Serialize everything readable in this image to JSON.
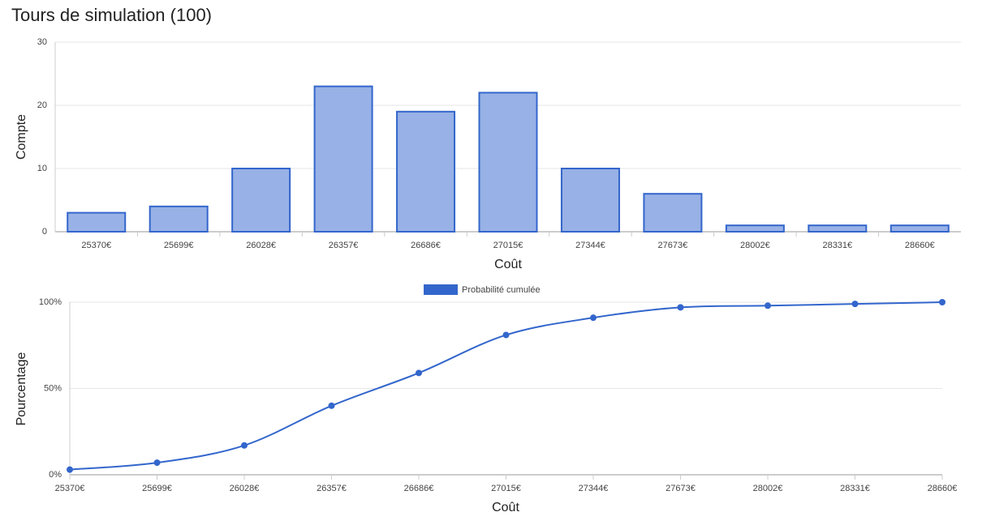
{
  "title": "Tours de simulation (100)",
  "chart_data": [
    {
      "type": "bar",
      "ylabel": "Compte",
      "xlabel": "Coût",
      "categories": [
        "25370€",
        "25699€",
        "26028€",
        "26357€",
        "26686€",
        "27015€",
        "27344€",
        "27673€",
        "28002€",
        "28331€",
        "28660€"
      ],
      "values": [
        3,
        4,
        10,
        23,
        19,
        22,
        10,
        6,
        1,
        1,
        1
      ],
      "color": "#3366cc",
      "fill": "#98b1e6",
      "ylim": [
        0,
        30
      ],
      "yticks": [
        0,
        10,
        20,
        30
      ],
      "grid": true
    },
    {
      "type": "line",
      "ylabel": "Pourcentage",
      "xlabel": "Coût",
      "categories": [
        "25370€",
        "25699€",
        "26028€",
        "26357€",
        "26686€",
        "27015€",
        "27344€",
        "27673€",
        "28002€",
        "28331€",
        "28660€"
      ],
      "series": [
        {
          "name": "Probabilité cumulée",
          "color": "#3366cc",
          "values": [
            3,
            7,
            17,
            40,
            59,
            81,
            91,
            97,
            98,
            99,
            100
          ]
        }
      ],
      "ylim": [
        0,
        100
      ],
      "yticks": [
        {
          "value": 0,
          "label": "0%"
        },
        {
          "value": 50,
          "label": "50%"
        },
        {
          "value": 100,
          "label": "100%"
        }
      ],
      "grid": true,
      "legend": "top"
    }
  ]
}
